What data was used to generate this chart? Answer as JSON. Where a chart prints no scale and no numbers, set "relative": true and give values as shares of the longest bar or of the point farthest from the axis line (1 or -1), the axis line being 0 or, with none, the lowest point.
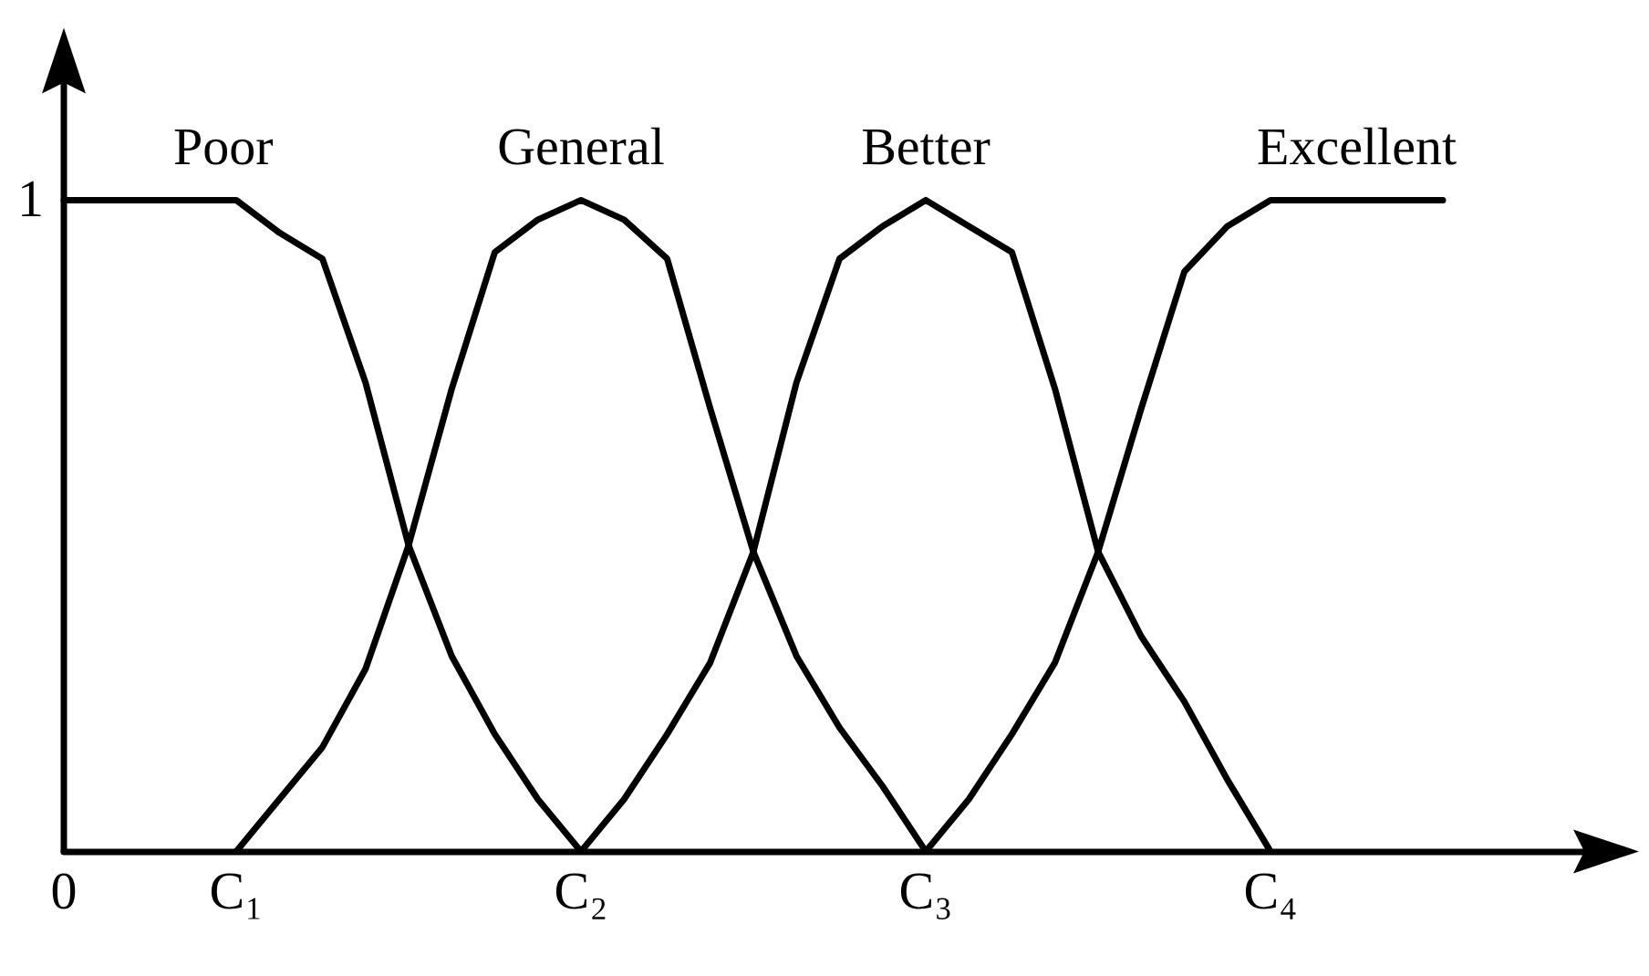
{
  "chart_data": {
    "type": "line",
    "relative": true,
    "annotations": [
      "1"
    ],
    "grid": false,
    "legend": false,
    "marker": "none",
    "line_style": "solid",
    "categories": [
      "0",
      null,
      null,
      null,
      "C₁",
      null,
      null,
      null,
      null,
      null,
      null,
      null,
      "C₂",
      null,
      null,
      null,
      null,
      null,
      null,
      null,
      "C₃",
      null,
      null,
      null,
      null,
      null,
      null,
      null,
      "C₄",
      null,
      null,
      null,
      null,
      null,
      null,
      null,
      null
    ],
    "series": [
      {
        "name": "Poor",
        "color": "#000000",
        "values": [
          1,
          1,
          1,
          1,
          1,
          0.95,
          0.91,
          0.72,
          0.47,
          0.3,
          0.18,
          0.08,
          0,
          null,
          null,
          null,
          null,
          null,
          null,
          null,
          null,
          null,
          null,
          null,
          null,
          null,
          null,
          null,
          null,
          null,
          null,
          null,
          null,
          null,
          null,
          null,
          null
        ]
      },
      {
        "name": "General",
        "color": "#000000",
        "values": [
          null,
          null,
          null,
          null,
          0,
          0.08,
          0.16,
          0.28,
          0.47,
          0.71,
          0.92,
          0.97,
          1,
          0.97,
          0.91,
          0.68,
          0.46,
          0.3,
          0.19,
          0.1,
          0,
          null,
          null,
          null,
          null,
          null,
          null,
          null,
          null,
          null,
          null,
          null,
          null,
          null,
          null,
          null,
          null
        ]
      },
      {
        "name": "Better",
        "color": "#000000",
        "values": [
          null,
          null,
          null,
          null,
          null,
          null,
          null,
          null,
          null,
          null,
          null,
          null,
          0,
          0.08,
          0.18,
          0.29,
          0.46,
          0.72,
          0.91,
          0.96,
          1,
          0.96,
          0.92,
          0.71,
          0.46,
          0.33,
          0.23,
          0.11,
          0,
          null,
          null,
          null,
          null,
          null,
          null,
          null,
          null
        ]
      },
      {
        "name": "Excellent",
        "color": "#000000",
        "values": [
          null,
          null,
          null,
          null,
          null,
          null,
          null,
          null,
          null,
          null,
          null,
          null,
          null,
          null,
          null,
          null,
          null,
          null,
          null,
          null,
          0,
          0.08,
          0.18,
          0.29,
          0.46,
          0.68,
          0.89,
          0.96,
          1,
          1,
          1,
          1,
          1,
          null,
          null,
          null,
          null
        ]
      }
    ]
  }
}
